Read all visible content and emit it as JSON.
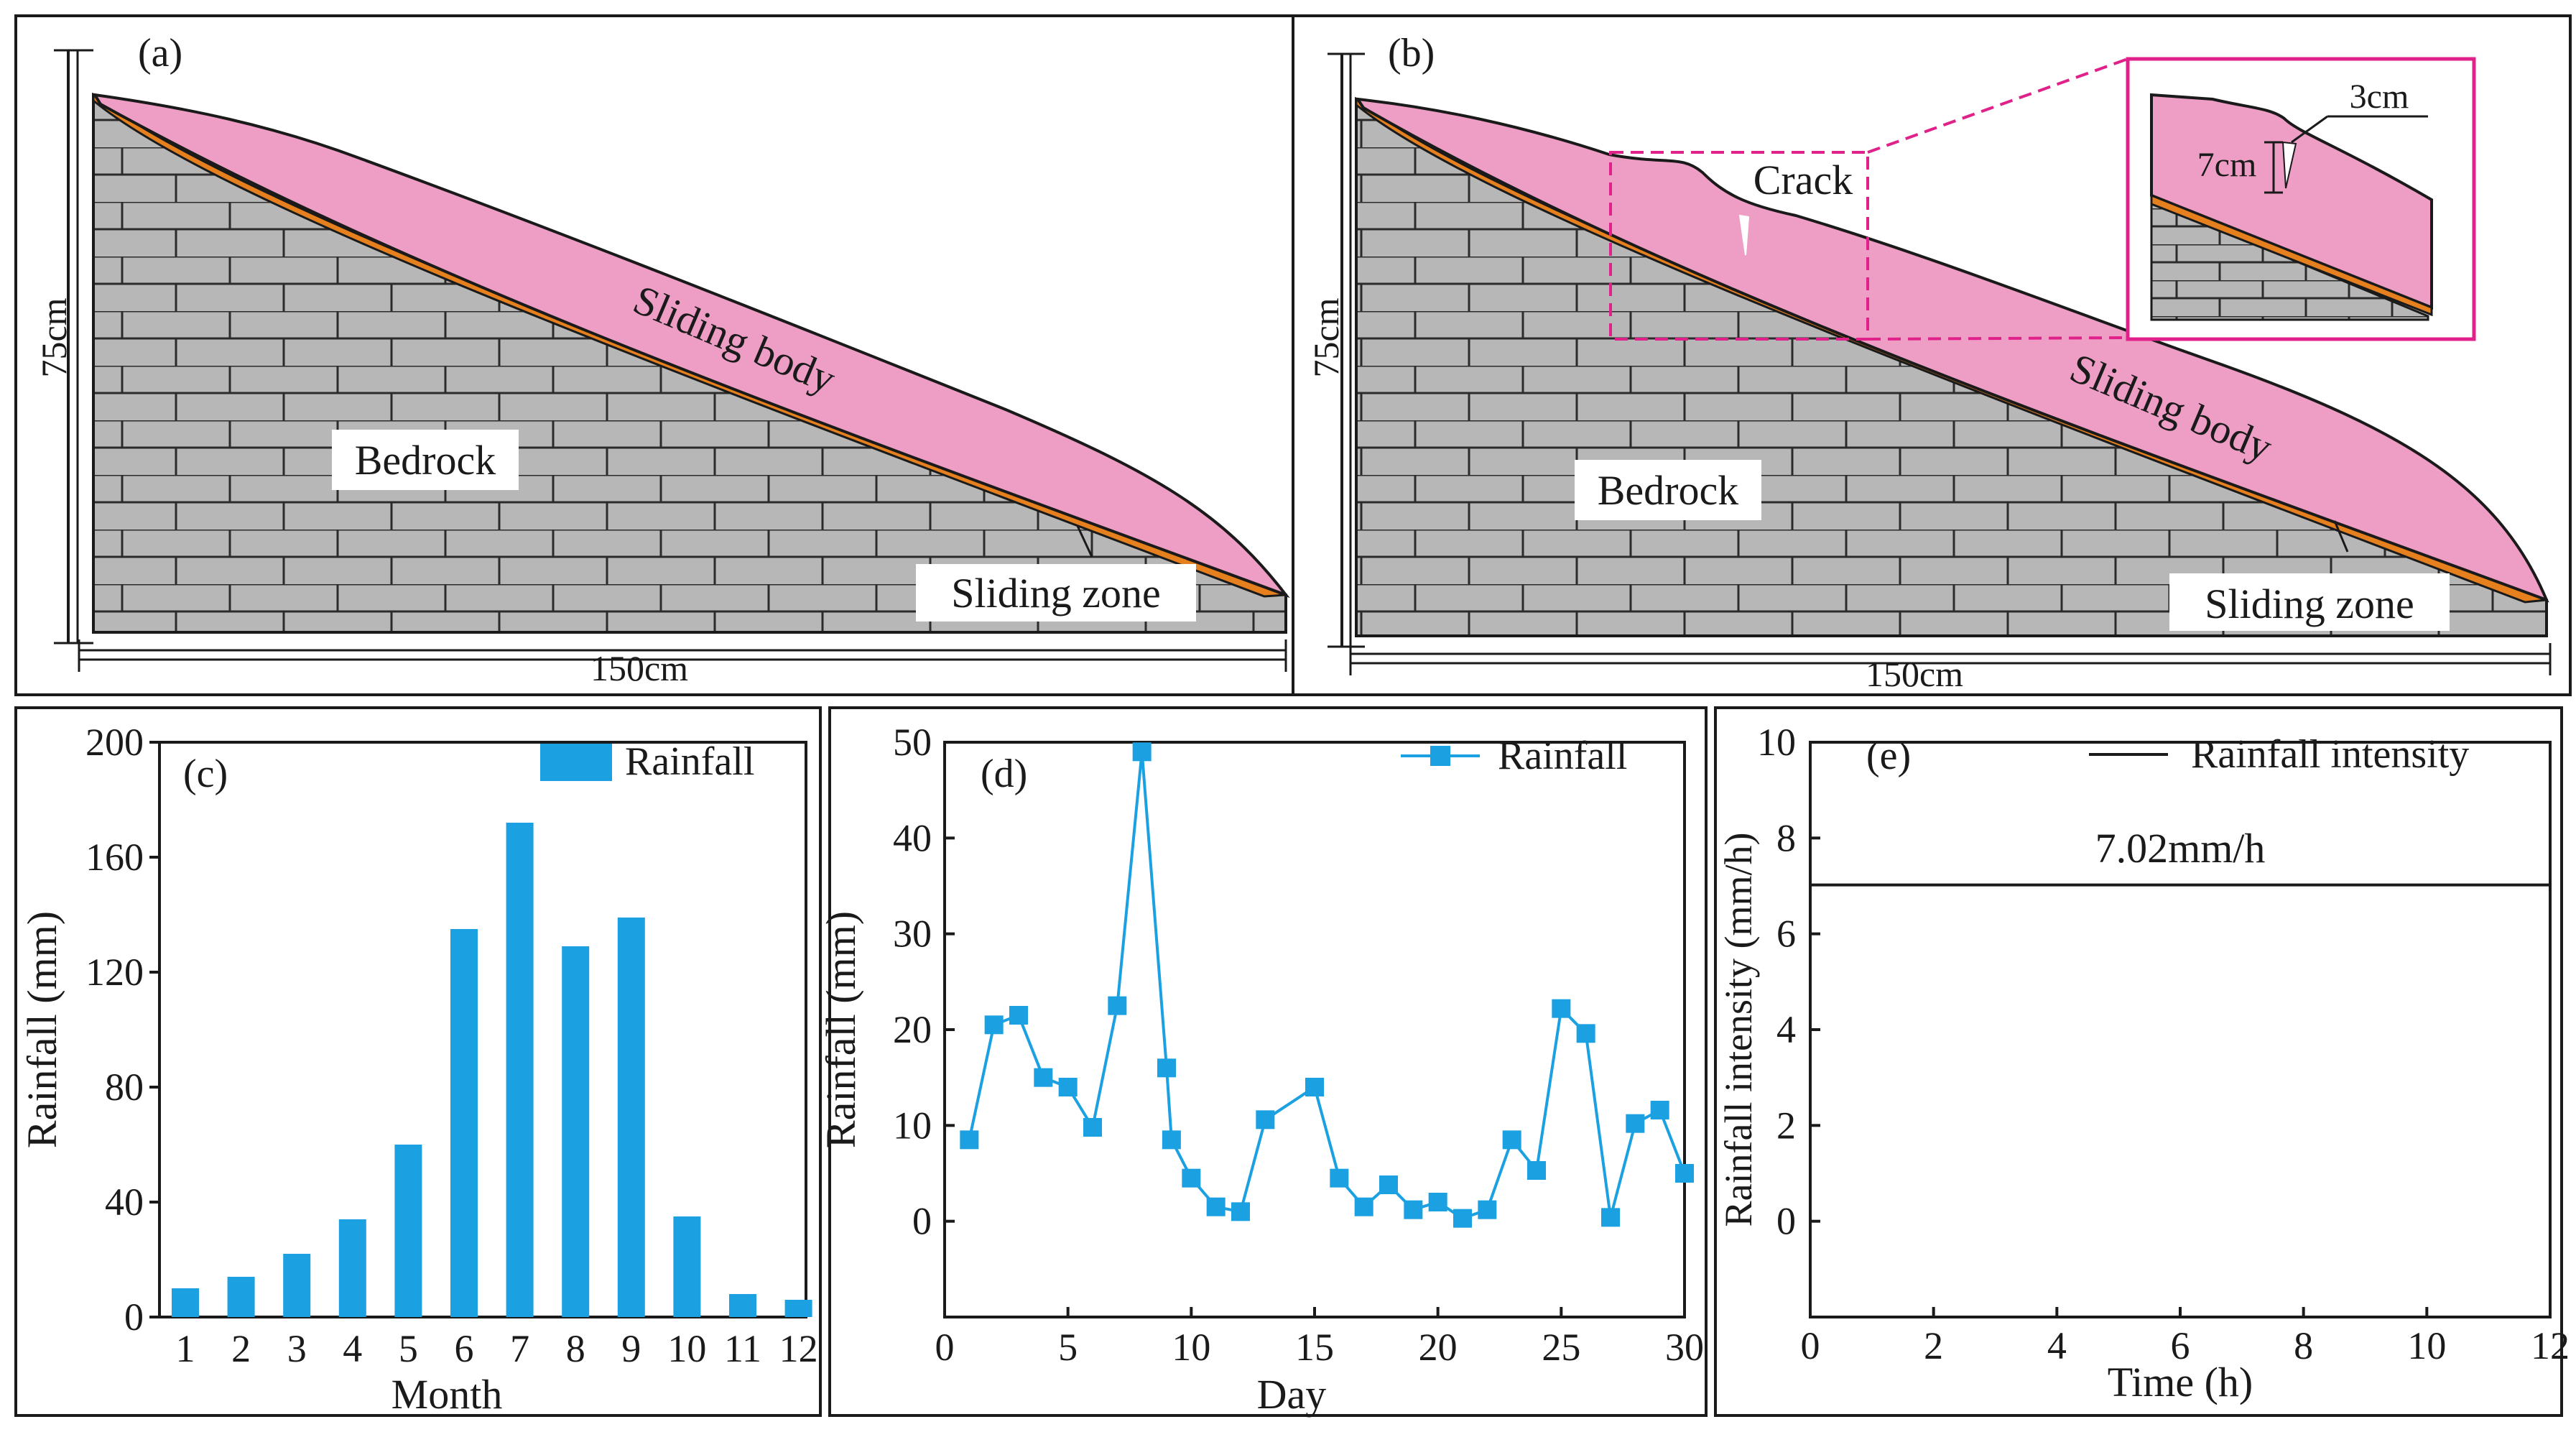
{
  "colors": {
    "pink": "#ee9ec5",
    "rock": "#b7b7b7",
    "zone": "#e6801f",
    "bar": "#1ba1e2",
    "dash": "#e0218a",
    "ink": "#1a1a1a"
  },
  "panel_a": {
    "letter": "(a)",
    "sliding_body": "Sliding body",
    "bedrock": "Bedrock",
    "sliding_zone": "Sliding zone",
    "height_label": "75cm",
    "width_label": "150cm"
  },
  "panel_b": {
    "letter": "(b)",
    "crack": "Crack",
    "sliding_body": "Sliding body",
    "bedrock": "Bedrock",
    "sliding_zone": "Sliding zone",
    "height_label": "75cm",
    "width_label": "150cm",
    "inset_width": "3cm",
    "inset_depth": "7cm"
  },
  "chart_data": [
    {
      "id": "c",
      "letter": "(c)",
      "type": "bar",
      "title": "",
      "xlabel": "Month",
      "ylabel": "Rainfall (mm)",
      "legend": "Rainfall",
      "legend_position": "top-right",
      "categories": [
        "1",
        "2",
        "3",
        "4",
        "5",
        "6",
        "7",
        "8",
        "9",
        "10",
        "11",
        "12"
      ],
      "values": [
        10,
        14,
        22,
        34,
        60,
        135,
        172,
        129,
        139,
        35,
        8,
        6
      ],
      "ylim": [
        0,
        200
      ],
      "yticks": [
        "0",
        "40",
        "80",
        "120",
        "160",
        "200"
      ],
      "grid": false
    },
    {
      "id": "d",
      "letter": "(d)",
      "type": "line",
      "title": "",
      "xlabel": "Day",
      "ylabel": "Rainfall (mm)",
      "legend": "Rainfall",
      "legend_position": "top-right",
      "x": [
        1,
        2,
        3,
        4,
        5,
        6,
        7,
        8,
        9,
        9.2,
        10,
        11,
        12,
        13,
        15,
        16,
        17,
        18,
        19,
        20,
        21,
        22,
        23,
        24,
        25,
        26,
        27,
        28,
        29,
        30
      ],
      "values": [
        8.5,
        20.5,
        21.5,
        15,
        14,
        9.8,
        22.5,
        49,
        16,
        8.5,
        4.5,
        1.5,
        1,
        10.6,
        14,
        4.5,
        1.5,
        3.8,
        1.2,
        2,
        0.3,
        1.2,
        8.5,
        5.3,
        22.2,
        19.6,
        0.4,
        10.2,
        11.6,
        5
      ],
      "xlim": [
        0,
        30
      ],
      "ylim": [
        -10,
        50
      ],
      "xticks": [
        "0",
        "5",
        "10",
        "15",
        "20",
        "25",
        "30"
      ],
      "yticks": [
        "0",
        "10",
        "20",
        "30",
        "40",
        "50"
      ],
      "grid": false
    },
    {
      "id": "e",
      "letter": "(e)",
      "type": "line",
      "title": "",
      "xlabel": "Time (h)",
      "ylabel": "Rainfall intensity (mm/h)",
      "legend": "Rainfall intensity",
      "legend_position": "top-right",
      "x": [
        0,
        12
      ],
      "values": [
        7.02,
        7.02
      ],
      "annotation": "7.02mm/h",
      "xlim": [
        0,
        12
      ],
      "ylim": [
        -2,
        10
      ],
      "xticks": [
        "0",
        "2",
        "4",
        "6",
        "8",
        "10",
        "12"
      ],
      "yticks": [
        "0",
        "2",
        "4",
        "6",
        "8",
        "10"
      ],
      "grid": false
    }
  ]
}
